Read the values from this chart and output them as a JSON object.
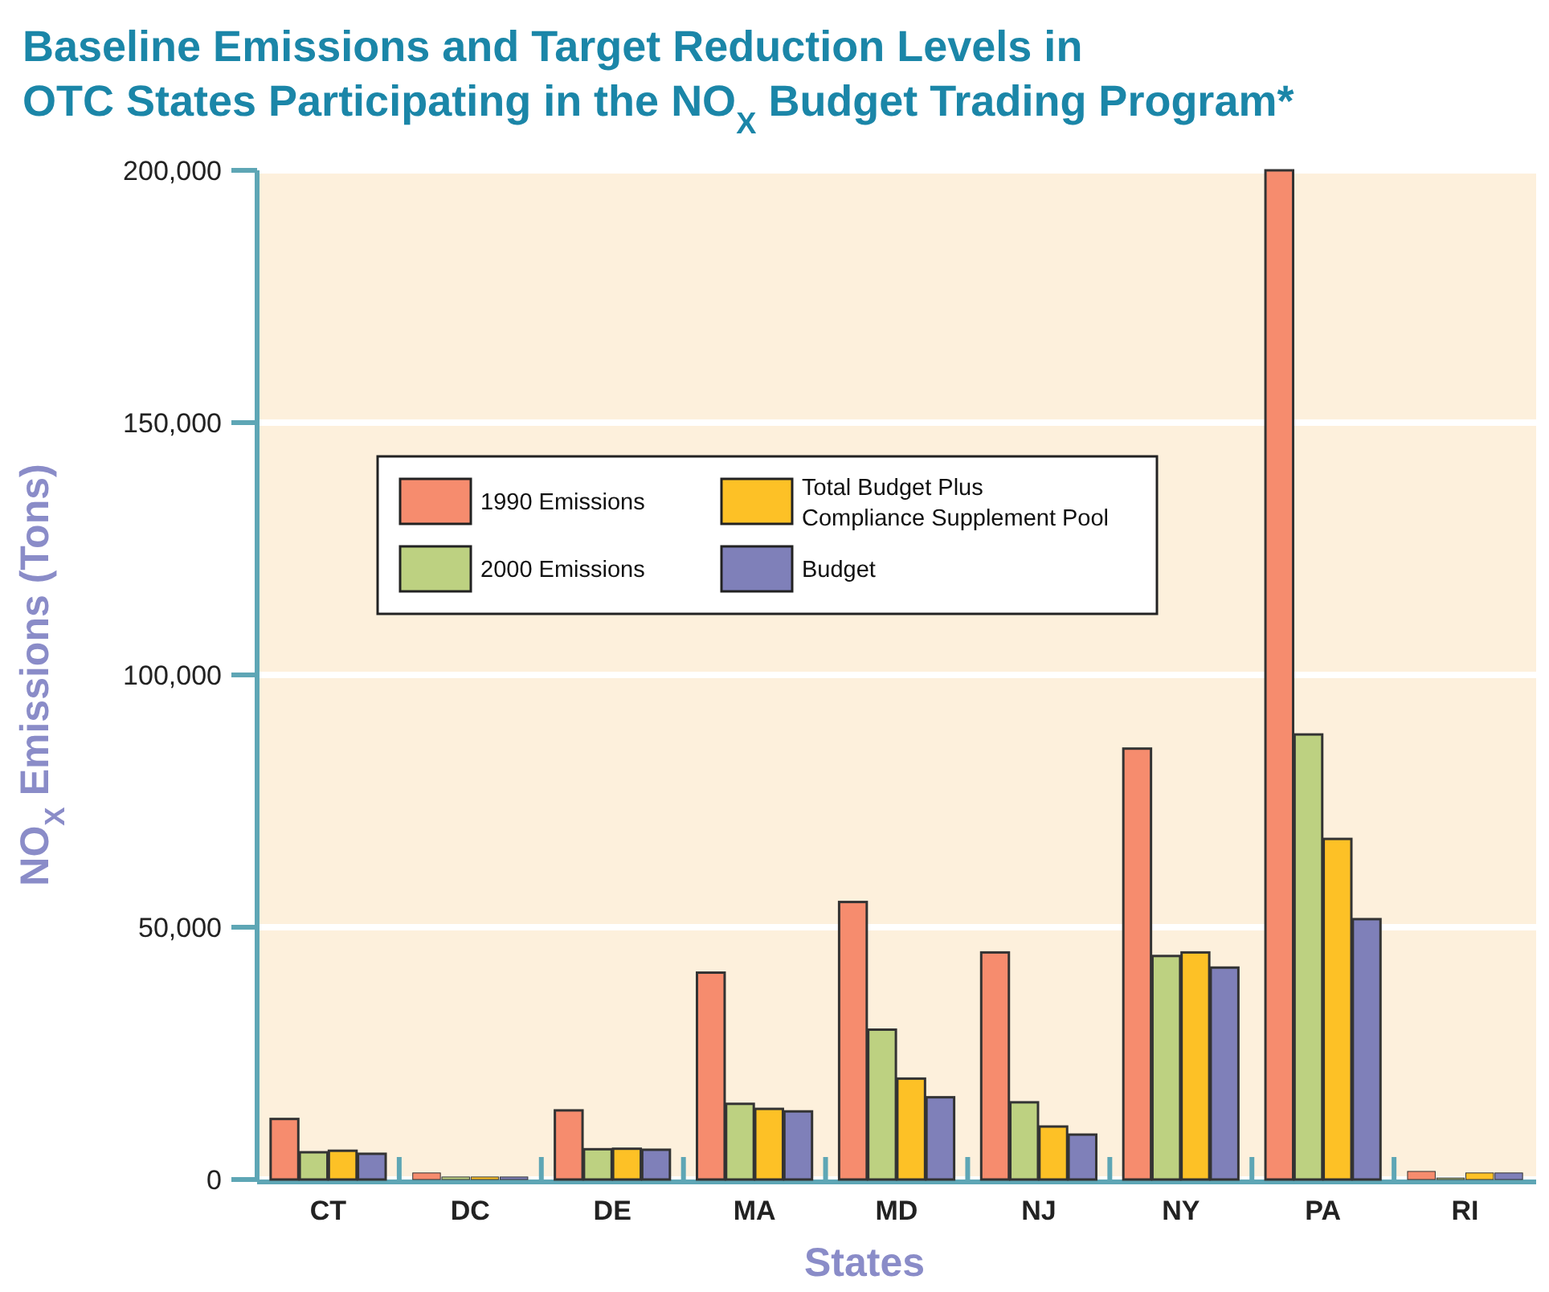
{
  "chart_data": {
    "type": "bar",
    "title": "Baseline Emissions and Target Reduction Levels in OTC States Participating in the NO$_{X}$ Budget Trading Program*",
    "xlabel": "States",
    "ylabel": "NO$_{X}$ Emissions (Tons)",
    "categories": [
      "CT",
      "DC",
      "DE",
      "MA",
      "MD",
      "NJ",
      "NY",
      "PA",
      "RI"
    ],
    "series": [
      {
        "name": "1990 Emissions",
        "color": "#f68c6e",
        "values": [
          12000,
          1300,
          13700,
          41000,
          55000,
          45000,
          85400,
          200000,
          1600
        ]
      },
      {
        "name": "2000 Emissions",
        "color": "#bdd181",
        "values": [
          5400,
          500,
          6000,
          15000,
          29700,
          15300,
          44300,
          88200,
          300
        ]
      },
      {
        "name": "Total Budget Plus Compliance Supplement Pool",
        "color": "#fdc126",
        "values": [
          5700,
          500,
          6100,
          14000,
          20000,
          10500,
          45000,
          67500,
          1300
        ]
      },
      {
        "name": "Budget",
        "color": "#7f80b9",
        "values": [
          5100,
          500,
          5900,
          13500,
          16300,
          8900,
          42000,
          51600,
          1300
        ]
      }
    ],
    "ylim": [
      0,
      200000
    ],
    "yticks": [
      0,
      {
        "value": 50000,
        "label": "50,000"
      },
      {
        "value": 100000,
        "label": "100,000"
      },
      {
        "value": 150000,
        "label": "150,000"
      },
      {
        "value": 200000,
        "label": "200,000"
      }
    ],
    "grid": "y",
    "legend": "top left"
  }
}
